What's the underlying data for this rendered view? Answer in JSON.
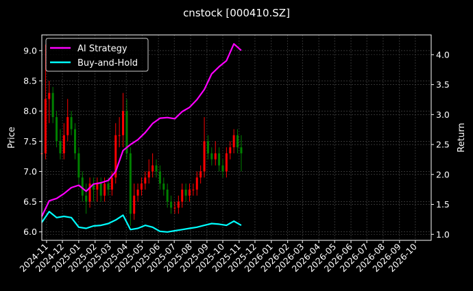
{
  "chart_data": {
    "type": "candlestick+line",
    "title": "cnstock [000410.SZ]",
    "ylabel_left": "Price",
    "ylabel_right": "Return",
    "ylim_left": [
      5.86,
      9.26
    ],
    "ylim_right": [
      0.9,
      4.33
    ],
    "xlim": [
      "2024-10-23",
      "2026-10-31"
    ],
    "grid": true,
    "legend_position": "top-left",
    "left_ticks": [
      "6.0",
      "6.5",
      "7.0",
      "7.5",
      "8.0",
      "8.5",
      "9.0"
    ],
    "right_ticks": [
      "1.0",
      "1.5",
      "2.0",
      "2.5",
      "3.0",
      "3.5",
      "4.0"
    ],
    "x_ticks": [
      "2024-11",
      "2024-12",
      "2025-01",
      "2025-02",
      "2025-03",
      "2025-04",
      "2025-05",
      "2025-06",
      "2025-07",
      "2025-08",
      "2025-09",
      "2025-10",
      "2025-11",
      "2025-12",
      "2026-01",
      "2026-02",
      "2026-03",
      "2026-04",
      "2026-05",
      "2026-06",
      "2026-07",
      "2026-08",
      "2026-09",
      "2026-10"
    ],
    "colors": {
      "up": "#ff0000",
      "down": "#008000",
      "ai": "#ff00ff",
      "bh": "#00ffff",
      "background": "#000000"
    },
    "candles": {
      "dates": [
        "2024-10-23",
        "2024-10-30",
        "2024-11-06",
        "2024-11-13",
        "2024-11-20",
        "2024-11-27",
        "2024-12-04",
        "2024-12-11",
        "2024-12-18",
        "2024-12-25",
        "2025-01-01",
        "2025-01-08",
        "2025-01-15",
        "2025-01-22",
        "2025-01-29",
        "2025-02-05",
        "2025-02-12",
        "2025-02-19",
        "2025-02-26",
        "2025-03-05",
        "2025-03-12",
        "2025-03-19",
        "2025-03-26",
        "2025-04-02",
        "2025-04-09",
        "2025-04-16",
        "2025-04-23",
        "2025-04-30",
        "2025-05-07",
        "2025-05-14",
        "2025-05-21",
        "2025-05-28",
        "2025-06-04",
        "2025-06-11",
        "2025-06-18",
        "2025-06-25",
        "2025-07-02",
        "2025-07-09",
        "2025-07-16",
        "2025-07-23",
        "2025-07-30",
        "2025-08-06",
        "2025-08-13",
        "2025-08-20",
        "2025-08-27",
        "2025-09-03",
        "2025-09-10",
        "2025-09-17",
        "2025-09-24",
        "2025-10-01",
        "2025-10-08",
        "2025-10-15",
        "2025-10-22",
        "2025-10-29",
        "2025-11-05"
      ],
      "open": [
        7.3,
        7.3,
        8.2,
        8.3,
        7.9,
        7.5,
        7.3,
        7.6,
        7.9,
        7.7,
        7.3,
        6.9,
        6.6,
        6.5,
        6.8,
        6.7,
        6.8,
        6.6,
        6.8,
        6.7,
        6.9,
        7.6,
        7.6,
        8.0,
        7.3,
        6.3,
        6.6,
        6.7,
        6.8,
        6.9,
        7.0,
        7.1,
        7.0,
        6.8,
        6.7,
        6.5,
        6.4,
        6.4,
        6.5,
        6.7,
        6.6,
        6.7,
        6.7,
        6.9,
        7.0,
        7.5,
        7.3,
        7.2,
        7.3,
        7.1,
        7.0,
        7.3,
        7.4,
        7.6,
        7.4
      ],
      "high": [
        7.7,
        9.1,
        8.5,
        8.4,
        8.0,
        7.7,
        7.8,
        8.2,
        8.0,
        7.8,
        7.4,
        7.0,
        6.8,
        6.9,
        6.9,
        6.9,
        6.9,
        6.9,
        6.9,
        7.0,
        7.8,
        7.9,
        8.3,
        8.2,
        7.4,
        6.8,
        6.8,
        6.9,
        7.0,
        7.2,
        7.3,
        7.2,
        7.1,
        6.9,
        6.8,
        6.6,
        6.5,
        6.6,
        6.8,
        6.8,
        6.8,
        6.8,
        7.0,
        7.1,
        7.9,
        7.6,
        7.4,
        7.5,
        7.4,
        7.2,
        7.4,
        7.5,
        7.7,
        7.7,
        7.6
      ],
      "low": [
        7.2,
        7.2,
        7.8,
        7.8,
        7.4,
        7.2,
        7.2,
        7.5,
        7.6,
        7.2,
        6.8,
        6.5,
        6.3,
        6.4,
        6.5,
        6.5,
        6.5,
        6.5,
        6.6,
        6.6,
        6.8,
        7.4,
        7.4,
        7.2,
        6.1,
        6.2,
        6.5,
        6.6,
        6.7,
        6.8,
        6.9,
        6.9,
        6.7,
        6.6,
        6.4,
        6.3,
        6.3,
        6.3,
        6.4,
        6.5,
        6.5,
        6.6,
        6.6,
        6.8,
        6.9,
        7.2,
        7.1,
        7.1,
        7.0,
        6.9,
        6.9,
        7.2,
        7.3,
        7.3,
        7.0
      ],
      "close": [
        7.3,
        8.2,
        8.3,
        7.9,
        7.5,
        7.3,
        7.6,
        7.9,
        7.7,
        7.3,
        6.9,
        6.6,
        6.5,
        6.8,
        6.7,
        6.8,
        6.6,
        6.8,
        6.7,
        6.9,
        7.6,
        7.6,
        8.0,
        7.3,
        6.3,
        6.6,
        6.7,
        6.8,
        6.9,
        7.0,
        7.1,
        7.0,
        6.8,
        6.7,
        6.5,
        6.4,
        6.4,
        6.5,
        6.7,
        6.6,
        6.7,
        6.7,
        6.9,
        7.0,
        7.5,
        7.3,
        7.2,
        7.3,
        7.1,
        7.0,
        7.3,
        7.4,
        7.6,
        7.4,
        7.3
      ]
    },
    "series": [
      {
        "name": "AI Strategy",
        "dates": [
          "2024-10-23",
          "2024-11-06",
          "2024-11-20",
          "2024-12-04",
          "2024-12-18",
          "2025-01-01",
          "2025-01-15",
          "2025-01-29",
          "2025-02-12",
          "2025-02-26",
          "2025-03-12",
          "2025-03-26",
          "2025-04-09",
          "2025-04-23",
          "2025-05-07",
          "2025-05-21",
          "2025-06-04",
          "2025-06-18",
          "2025-07-02",
          "2025-07-16",
          "2025-07-30",
          "2025-08-13",
          "2025-08-27",
          "2025-09-10",
          "2025-09-24",
          "2025-10-08",
          "2025-10-22",
          "2025-11-05"
        ],
        "values": [
          1.3,
          1.56,
          1.6,
          1.68,
          1.78,
          1.82,
          1.72,
          1.84,
          1.86,
          1.9,
          2.05,
          2.4,
          2.5,
          2.58,
          2.7,
          2.85,
          2.94,
          2.95,
          2.93,
          3.05,
          3.12,
          3.25,
          3.42,
          3.68,
          3.8,
          3.9,
          4.18,
          4.07
        ]
      },
      {
        "name": "Buy-and-Hold",
        "dates": [
          "2024-10-23",
          "2024-11-06",
          "2024-11-20",
          "2024-12-04",
          "2024-12-18",
          "2025-01-01",
          "2025-01-15",
          "2025-01-29",
          "2025-02-12",
          "2025-02-26",
          "2025-03-12",
          "2025-03-26",
          "2025-04-09",
          "2025-04-23",
          "2025-05-07",
          "2025-05-21",
          "2025-06-04",
          "2025-06-18",
          "2025-07-02",
          "2025-07-16",
          "2025-07-30",
          "2025-08-13",
          "2025-08-27",
          "2025-09-10",
          "2025-09-24",
          "2025-10-08",
          "2025-10-22",
          "2025-11-05"
        ],
        "values": [
          1.2,
          1.38,
          1.28,
          1.3,
          1.28,
          1.12,
          1.1,
          1.14,
          1.15,
          1.18,
          1.24,
          1.32,
          1.08,
          1.1,
          1.15,
          1.12,
          1.05,
          1.04,
          1.06,
          1.08,
          1.1,
          1.12,
          1.15,
          1.18,
          1.17,
          1.15,
          1.22,
          1.15
        ]
      }
    ]
  }
}
